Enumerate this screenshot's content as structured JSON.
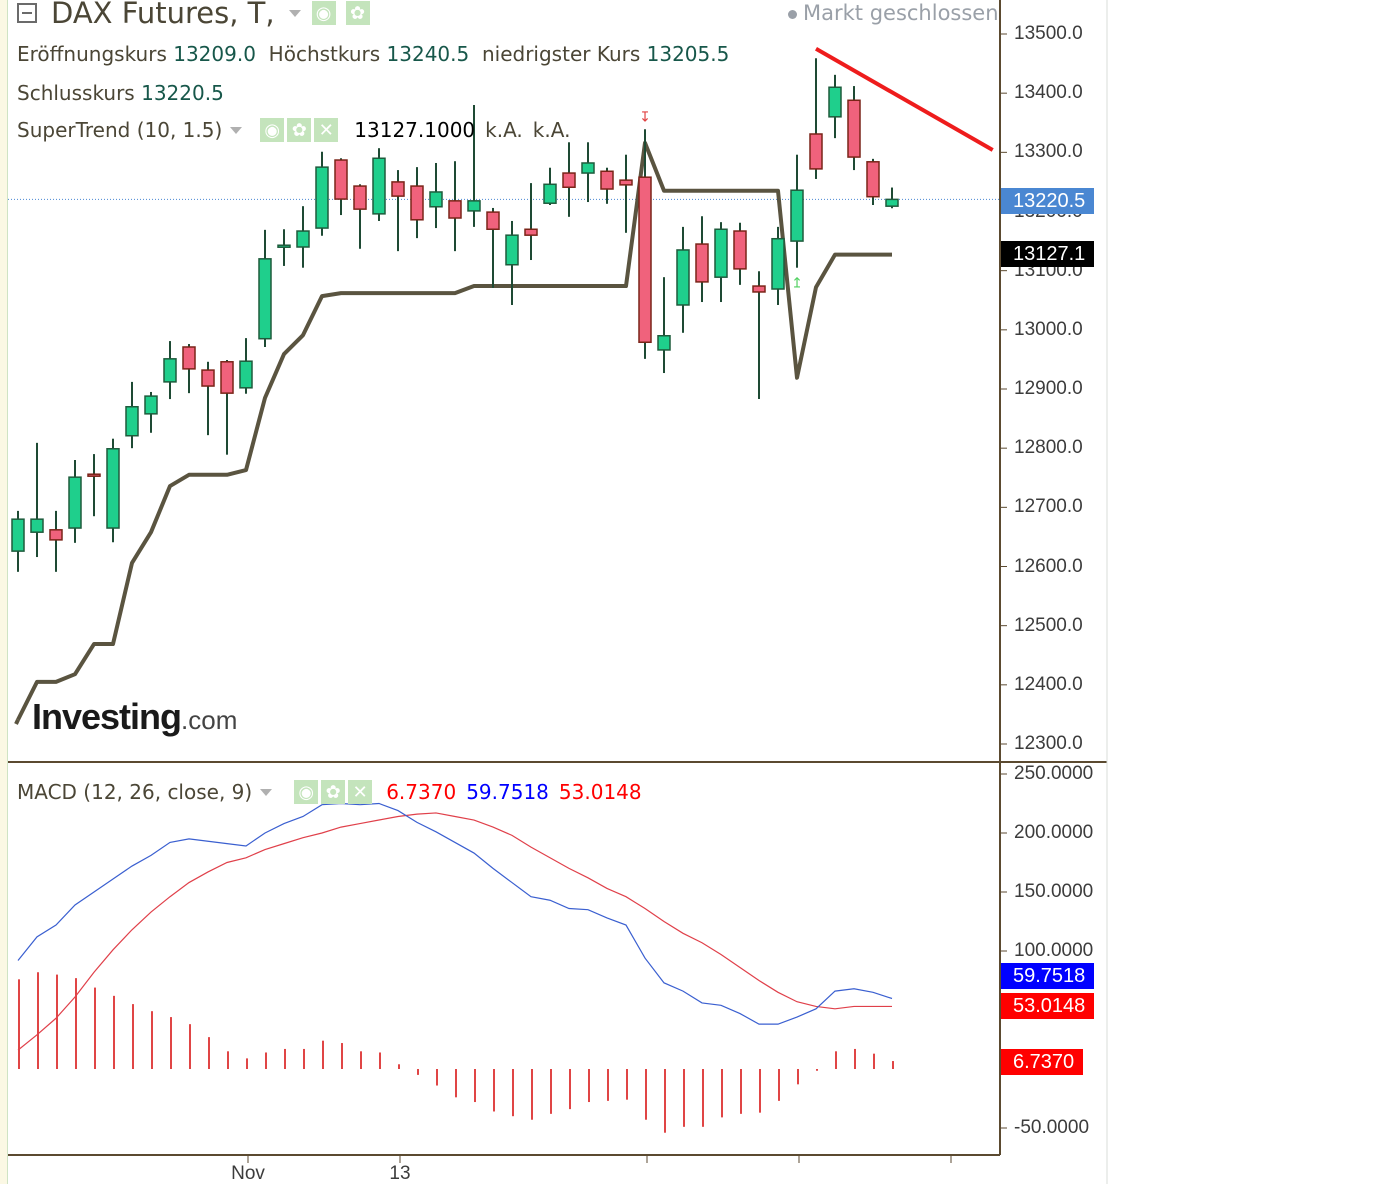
{
  "header": {
    "title": "DAX Futures, T,",
    "market_status": "Markt geschlossen",
    "ohlc": {
      "open_label": "Eröffnungskurs",
      "open": "13209.0",
      "high_label": "Höchstkurs",
      "high": "13240.5",
      "low_label": "niedrigster Kurs",
      "low": "13205.5",
      "close_label": "Schlusskurs",
      "close": "13220.5"
    }
  },
  "indicators": {
    "supertrend": {
      "label": "SuperTrend (10, 1.5)",
      "value": "13127.1000",
      "v2": "k.A.",
      "v3": "k.A."
    },
    "macd": {
      "label": "MACD (12, 26, close, 9)",
      "histogram": "6.7370",
      "macd": "59.7518",
      "signal": "53.0148"
    }
  },
  "icons": {
    "eye": "eye-icon",
    "gear": "gear-icon",
    "close": "close-icon",
    "collapse": "collapse-icon"
  },
  "logo": {
    "brand": "Investing",
    "suffix": ".com"
  },
  "price_tags": {
    "last": "13220.5",
    "supertrend": "13127.1"
  },
  "macd_tags": {
    "macd": "59.7518",
    "signal": "53.0148",
    "histogram": "6.7370"
  },
  "colors": {
    "up": "#1fcf8c",
    "up_border": "#1e5b3c",
    "down": "#f0627c",
    "down_border": "#7a2418",
    "wick": "#1e4a34",
    "supertrend": "#5a5440",
    "trendline": "#ee1c1c",
    "macd": "#3a5fd0",
    "signal": "#e0404a",
    "histogram": "#e04545",
    "last_tag": "#4a87d2",
    "supertrend_tag": "#000000",
    "macd_tag": "#0000ff",
    "signal_tag": "#ff0000"
  },
  "chart_data": [
    {
      "type": "candlestick",
      "title": "",
      "y_tick_labels": [
        "13500.0",
        "13400.0",
        "13300.0",
        "13200.0",
        "13100.0",
        "13000.0",
        "12900.0",
        "12800.0",
        "12700.0",
        "12600.0",
        "12500.0",
        "12400.0",
        "12300.0"
      ],
      "ylim": [
        12300,
        13500
      ],
      "x_ticks": [
        {
          "bar": 13,
          "label": "Nov"
        },
        {
          "bar": 21,
          "label": "13"
        },
        {
          "bar": 34,
          "label": ""
        },
        {
          "bar": 42,
          "label": ""
        },
        {
          "bar": 50,
          "label": ""
        }
      ],
      "grid": false,
      "ohlc": [
        [
          12626,
          12694,
          12591,
          12680
        ],
        [
          12658,
          12809,
          12616,
          12680
        ],
        [
          12662,
          12694,
          12591,
          12645
        ],
        [
          12665,
          12780,
          12640,
          12751
        ],
        [
          12756,
          12790,
          12685,
          12753
        ],
        [
          12665,
          12816,
          12641,
          12799
        ],
        [
          12821,
          12912,
          12800,
          12870
        ],
        [
          12858,
          12895,
          12826,
          12888
        ],
        [
          12912,
          12981,
          12883,
          12951
        ],
        [
          12971,
          12976,
          12893,
          12934
        ],
        [
          12932,
          12946,
          12822,
          12905
        ],
        [
          12946,
          12949,
          12789,
          12893
        ],
        [
          12902,
          12986,
          12892,
          12947
        ],
        [
          12985,
          13169,
          12971,
          13120
        ],
        [
          13142,
          13170,
          13108,
          13143
        ],
        [
          13140,
          13209,
          13105,
          13167
        ],
        [
          13172,
          13301,
          13159,
          13275
        ],
        [
          13287,
          13290,
          13194,
          13221
        ],
        [
          13243,
          13246,
          13137,
          13204
        ],
        [
          13196,
          13307,
          13184,
          13290
        ],
        [
          13250,
          13270,
          13133,
          13226
        ],
        [
          13243,
          13275,
          13155,
          13186
        ],
        [
          13208,
          13282,
          13172,
          13233
        ],
        [
          13218,
          13285,
          13133,
          13189
        ],
        [
          13201,
          13380,
          13174,
          13218
        ],
        [
          13199,
          13206,
          13071,
          13170
        ],
        [
          13110,
          13184,
          13042,
          13160
        ],
        [
          13170,
          13248,
          13118,
          13160
        ],
        [
          13214,
          13274,
          13211,
          13246
        ],
        [
          13265,
          13317,
          13191,
          13241
        ],
        [
          13265,
          13317,
          13216,
          13282
        ],
        [
          13268,
          13274,
          13213,
          13238
        ],
        [
          13253,
          13296,
          13164,
          13245
        ],
        [
          13258,
          13339,
          12951,
          12979
        ],
        [
          12966,
          13089,
          12927,
          12990
        ],
        [
          13042,
          13174,
          12995,
          13135
        ],
        [
          13145,
          13192,
          13047,
          13081
        ],
        [
          13089,
          13182,
          13047,
          13170
        ],
        [
          13167,
          13181,
          13076,
          13103
        ],
        [
          13074,
          13099,
          12883,
          13064
        ],
        [
          13069,
          13174,
          13042,
          13154
        ],
        [
          13150,
          13296,
          13105,
          13236
        ],
        [
          13331,
          13459,
          13255,
          13272
        ],
        [
          13360,
          13431,
          13324,
          13410
        ],
        [
          13388,
          13412,
          13270,
          13292
        ],
        [
          13284,
          13289,
          13211,
          13225
        ],
        [
          13209,
          13240.5,
          13205.5,
          13220.5
        ]
      ],
      "supertrend": [
        12341,
        12405,
        12405,
        12418,
        12469,
        12469,
        12606,
        12658,
        12736,
        12755,
        12755,
        12755,
        12763,
        12885,
        12959,
        12991,
        13057,
        13062,
        13062,
        13062,
        13062,
        13062,
        13062,
        13062,
        13074,
        13074,
        13074,
        13074,
        13074,
        13074,
        13074,
        13074,
        13074,
        13316,
        13235,
        13235,
        13235,
        13235,
        13235,
        13235,
        13235,
        12919,
        13072,
        13127.1,
        13127.1,
        13127.1,
        13127.1
      ],
      "signals": [
        {
          "bar": 34,
          "type": "sell"
        },
        {
          "bar": 42,
          "type": "buy"
        }
      ],
      "trendline": {
        "from": {
          "bar": 43,
          "price": 13475
        },
        "to": {
          "bar": 52.3,
          "price": 13304
        }
      },
      "last_price": 13220.5
    },
    {
      "type": "line",
      "title": "",
      "y_tick_labels": [
        "250.0000",
        "200.0000",
        "150.0000",
        "100.0000",
        "-50.0000"
      ],
      "ylim": [
        -50,
        250
      ],
      "grid": false,
      "series": [
        {
          "name": "MACD",
          "values": [
            92,
            112,
            122,
            139,
            150,
            161,
            172,
            181,
            192,
            195,
            193,
            191,
            189,
            200,
            208,
            214,
            224,
            225,
            224,
            225,
            219,
            209,
            201,
            192,
            183,
            170,
            158,
            146,
            143,
            136,
            135,
            128,
            122,
            94,
            73,
            66,
            56,
            54,
            47,
            38,
            38,
            44,
            51,
            66,
            68,
            65,
            59.7518
          ]
        },
        {
          "name": "Signal",
          "values": [
            16,
            29,
            43,
            61,
            82,
            101,
            118,
            133,
            146,
            158,
            167,
            175,
            179,
            186,
            191,
            196,
            200,
            205,
            208,
            211,
            214,
            216,
            217,
            214,
            211,
            205,
            198,
            188,
            179,
            170,
            162,
            153,
            146,
            136,
            125,
            115,
            107,
            97,
            86,
            75,
            65,
            57,
            53,
            51,
            53,
            53,
            53.0148
          ]
        },
        {
          "name": "Histogram",
          "type": "bar",
          "values": [
            76,
            82,
            80,
            77,
            69,
            62,
            55,
            49,
            44,
            38,
            27,
            15,
            9,
            14,
            17,
            17,
            24,
            22,
            15,
            14,
            4,
            -5,
            -14,
            -24,
            -28,
            -36,
            -40,
            -43,
            -38,
            -34,
            -28,
            -27,
            -26,
            -43,
            -54,
            -49,
            -49,
            -41,
            -38,
            -37,
            -27,
            -13,
            -1.5,
            15,
            17,
            13,
            6.737
          ]
        }
      ]
    }
  ]
}
